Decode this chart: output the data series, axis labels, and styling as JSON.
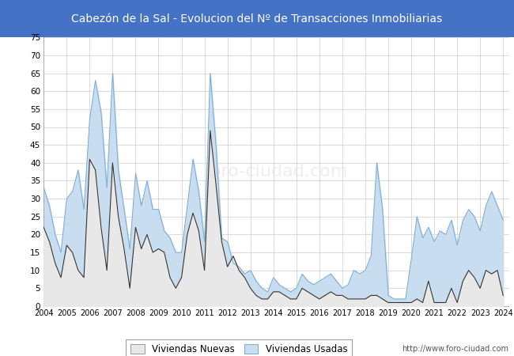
{
  "title": "Cabezón de la Sal - Evolucion del Nº de Transacciones Inmobiliarias",
  "title_color": "#ffffff",
  "title_bg_color": "#4472C4",
  "ylim": [
    0,
    75
  ],
  "yticks": [
    0,
    5,
    10,
    15,
    20,
    25,
    30,
    35,
    40,
    45,
    50,
    55,
    60,
    65,
    70,
    75
  ],
  "legend_labels": [
    "Viviendas Nuevas",
    "Viviendas Usadas"
  ],
  "url_text": "http://www.foro-ciudad.com",
  "nueva_line_color": "#333333",
  "usada_fill_color": "#c8ddf0",
  "nueva_fill_color": "#e8e8e8",
  "usada_line_color": "#7aabcf",
  "background_color": "#ffffff",
  "plot_bg_color": "#ffffff",
  "nuevas": [
    22,
    18,
    12,
    8,
    17,
    15,
    10,
    8,
    41,
    38,
    22,
    10,
    40,
    25,
    16,
    5,
    22,
    16,
    20,
    15,
    16,
    15,
    8,
    5,
    8,
    20,
    26,
    21,
    10,
    49,
    34,
    18,
    11,
    14,
    10,
    8,
    5,
    3,
    2,
    2,
    4,
    4,
    3,
    2,
    2,
    5,
    4,
    3,
    2,
    3,
    4,
    3,
    3,
    2,
    2,
    2,
    2,
    3,
    3,
    2,
    1,
    1,
    1,
    1,
    1,
    2,
    1,
    7,
    1,
    1,
    1,
    5,
    1,
    7,
    10,
    8,
    5,
    10,
    9,
    10,
    3
  ],
  "usadas": [
    33,
    28,
    20,
    15,
    30,
    32,
    38,
    27,
    52,
    63,
    54,
    33,
    65,
    38,
    27,
    16,
    37,
    28,
    35,
    27,
    27,
    21,
    19,
    15,
    15,
    28,
    41,
    32,
    18,
    65,
    45,
    19,
    18,
    12,
    11,
    9,
    10,
    7,
    5,
    4,
    8,
    6,
    5,
    4,
    5,
    9,
    7,
    6,
    7,
    8,
    9,
    7,
    5,
    6,
    10,
    9,
    10,
    14,
    40,
    27,
    3,
    2,
    2,
    2,
    13,
    25,
    19,
    22,
    18,
    21,
    20,
    24,
    17,
    24,
    27,
    25,
    21,
    28,
    32,
    28,
    24
  ]
}
